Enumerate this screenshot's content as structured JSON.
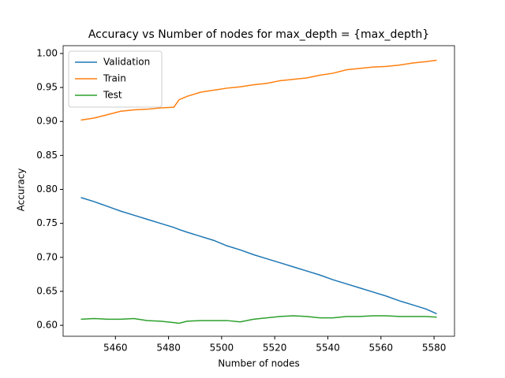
{
  "chart_data": {
    "type": "line",
    "title": "Accuracy vs Number of nodes for max_depth = {max_depth}",
    "xlabel": "Number of nodes",
    "ylabel": "Accuracy",
    "x": [
      5447,
      5452,
      5457,
      5462,
      5467,
      5472,
      5477,
      5482,
      5484,
      5487,
      5492,
      5497,
      5502,
      5507,
      5512,
      5517,
      5522,
      5527,
      5532,
      5537,
      5542,
      5547,
      5552,
      5557,
      5562,
      5567,
      5572,
      5577,
      5581
    ],
    "series": [
      {
        "name": "Validation",
        "color": "#1f77b4",
        "values": [
          0.788,
          0.782,
          0.775,
          0.768,
          0.762,
          0.756,
          0.75,
          0.744,
          0.741,
          0.737,
          0.731,
          0.725,
          0.717,
          0.711,
          0.704,
          0.698,
          0.692,
          0.686,
          0.68,
          0.674,
          0.667,
          0.661,
          0.655,
          0.649,
          0.643,
          0.636,
          0.63,
          0.624,
          0.617
        ]
      },
      {
        "name": "Train",
        "color": "#ff7f0e",
        "values": [
          0.902,
          0.905,
          0.91,
          0.915,
          0.917,
          0.918,
          0.92,
          0.921,
          0.932,
          0.937,
          0.943,
          0.946,
          0.949,
          0.951,
          0.954,
          0.956,
          0.96,
          0.962,
          0.964,
          0.968,
          0.971,
          0.976,
          0.978,
          0.98,
          0.981,
          0.983,
          0.986,
          0.988,
          0.99
        ]
      },
      {
        "name": "Test",
        "color": "#2ca02c",
        "values": [
          0.609,
          0.61,
          0.609,
          0.609,
          0.61,
          0.607,
          0.606,
          0.604,
          0.603,
          0.606,
          0.607,
          0.607,
          0.607,
          0.605,
          0.609,
          0.611,
          0.613,
          0.614,
          0.613,
          0.611,
          0.611,
          0.613,
          0.613,
          0.614,
          0.614,
          0.613,
          0.613,
          0.613,
          0.612
        ]
      }
    ],
    "xlim": [
      5440.3,
      5587.7
    ],
    "xticks": [
      5460,
      5480,
      5500,
      5520,
      5540,
      5560,
      5580
    ],
    "ylim": [
      0.5839,
      1.0115
    ],
    "yticks": [
      {
        "value": 0.6,
        "label": "0.60"
      },
      {
        "value": 0.65,
        "label": "0.65"
      },
      {
        "value": 0.7,
        "label": "0.70"
      },
      {
        "value": 0.75,
        "label": "0.75"
      },
      {
        "value": 0.8,
        "label": "0.80"
      },
      {
        "value": 0.85,
        "label": "0.85"
      },
      {
        "value": 0.9,
        "label": "0.90"
      },
      {
        "value": 0.95,
        "label": "0.95"
      },
      {
        "value": 1.0,
        "label": "1.00"
      }
    ],
    "grid": false,
    "legend": "upper left"
  }
}
